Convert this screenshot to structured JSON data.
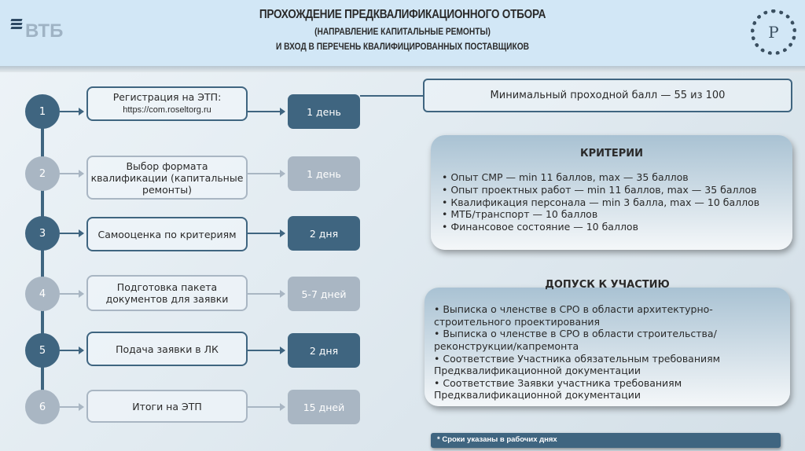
{
  "header": {
    "logo": "ВТБ",
    "title1": "ПРОХОЖДЕНИЕ ПРЕДКВАЛИФИКАЦИОННОГО ОТБОРА",
    "title2": "(НАПРАВЛЕНИЕ КАПИТАЛЬНЫЕ РЕМОНТЫ)",
    "title3": "И ВХОД В ПЕРЕЧЕНЬ КВАЛИФИЦИРОВАННЫХ ПОСТАВЩИКОВ",
    "seal": "Р"
  },
  "colors": {
    "dark": "#3f6580",
    "light": "#a9b6c3",
    "header": "#d2e7f6"
  },
  "steps": [
    {
      "num": "1",
      "label": "Регистрация на ЭТП:",
      "sub": "https://com.roseltorg.ru",
      "duration": "1 день",
      "active": true
    },
    {
      "num": "2",
      "label": "Выбор формата квалификации (капитальные ремонты)",
      "duration": "1 день",
      "active": false
    },
    {
      "num": "3",
      "label": "Самооценка по критериям",
      "duration": "2 дня",
      "active": true
    },
    {
      "num": "4",
      "label": "Подготовка пакета документов для заявки",
      "duration": "5-7 дней",
      "active": false
    },
    {
      "num": "5",
      "label": "Подача заявки в ЛК",
      "duration": "2 дня",
      "active": true
    },
    {
      "num": "6",
      "label": "Итоги на ЭТП",
      "duration": "15 дней",
      "active": false
    }
  ],
  "min_score": "Минимальный проходной балл — 55 из 100",
  "criteria": {
    "title": "КРИТЕРИИ",
    "items": [
      "• Опыт СМР — min 11 баллов, max — 35 баллов",
      "• Опыт проектных работ — min 11 баллов, max — 35 баллов",
      "• Квалификация персонала — min 3 балла, max — 10 баллов",
      "• МТБ/транспорт — 10 баллов",
      "• Финансовое состояние — 10 баллов"
    ]
  },
  "admission": {
    "title": "ДОПУСК К УЧАСТИЮ",
    "items": [
      "• Выписка о членстве в СРО в области архитектурно-строительного проектирования",
      "• Выписка о членстве в СРО в области строительства/реконструкции/капремонта",
      "• Соответствие Участника обязательным требованиям Предквалификационной документации",
      "• Соответствие Заявки участника требованиям Предквалификационной документации"
    ]
  },
  "footnote": "* Сроки указаны в рабочих днях"
}
